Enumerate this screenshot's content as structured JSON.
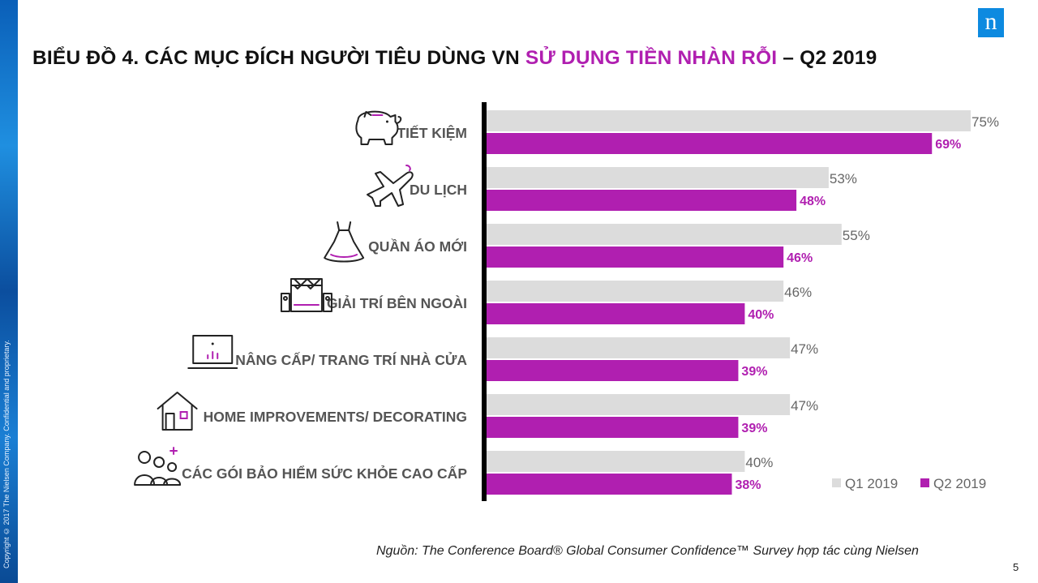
{
  "copyright": "Copyright © 2017 The Nielsen Company. Confidential and proprietary.",
  "logo": "n",
  "title": {
    "prefix": "BIỂU ĐỒ 4. CÁC MỤC ĐÍCH NGƯỜI TIÊU DÙNG VN ",
    "highlight": "SỬ DỤNG TIỀN NHÀN RỖI",
    "suffix": " – Q2 2019"
  },
  "source": "Nguồn: The Conference Board® Global Consumer Confidence™ Survey hợp tác cùng  Nielsen",
  "page_number": "5",
  "colors": {
    "q1": "#dcdcdc",
    "q2": "#b01fb0",
    "axis": "#000000"
  },
  "chart_data": {
    "type": "bar",
    "orientation": "horizontal",
    "categories": [
      "TIẾT KIỆM",
      "DU LỊCH",
      "QUẦN ÁO MỚI",
      "GIẢI TRÍ BÊN NGOÀI",
      "NÂNG CẤP/ TRANG TRÍ NHÀ CỬA",
      "HOME IMPROVEMENTS/ DECORATING",
      "CÁC GÓI BẢO HIỂM SỨC KHỎE CAO CẤP"
    ],
    "icons": [
      "piggy-bank-icon",
      "airplane-icon",
      "dress-icon",
      "stage-speakers-icon",
      "laptop-chart-icon",
      "house-icon",
      "family-plus-icon"
    ],
    "series": [
      {
        "name": "Q1 2019",
        "values": [
          75,
          53,
          55,
          46,
          47,
          47,
          40
        ],
        "labels": [
          "75%",
          "53%",
          "55%",
          "46%",
          "47%",
          "47%",
          "40%"
        ]
      },
      {
        "name": "Q2 2019",
        "values": [
          69,
          48,
          46,
          40,
          39,
          39,
          38
        ],
        "labels": [
          "69%",
          "48%",
          "46%",
          "40%",
          "39%",
          "39%",
          "38%"
        ]
      }
    ],
    "xlim": [
      0,
      75
    ],
    "legend": "bottom-right"
  }
}
